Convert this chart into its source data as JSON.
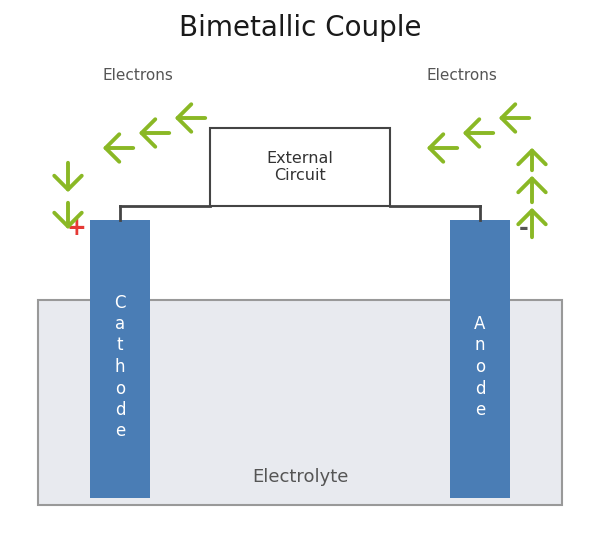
{
  "title": "Bimetallic Couple",
  "title_fontsize": 20,
  "bg_color": "#ffffff",
  "electrode_color": "#4a7db5",
  "electrode_text_color": "#ffffff",
  "electrolyte_color": "#e8eaef",
  "electrolyte_border": "#999999",
  "circuit_box_color": "#ffffff",
  "circuit_box_border": "#444444",
  "wire_color": "#444444",
  "arrow_color": "#8ab825",
  "plus_color": "#e53935",
  "minus_color": "#555555",
  "electrolyte_label": "Electrolyte",
  "circuit_label": "External\nCircuit",
  "cathode_label": "C\na\nt\nh\no\nd\ne",
  "anode_label": "A\nn\no\nd\ne",
  "left_label": "Electrons",
  "right_label": "Electrons",
  "figw": 6.0,
  "figh": 5.38,
  "dpi": 100
}
